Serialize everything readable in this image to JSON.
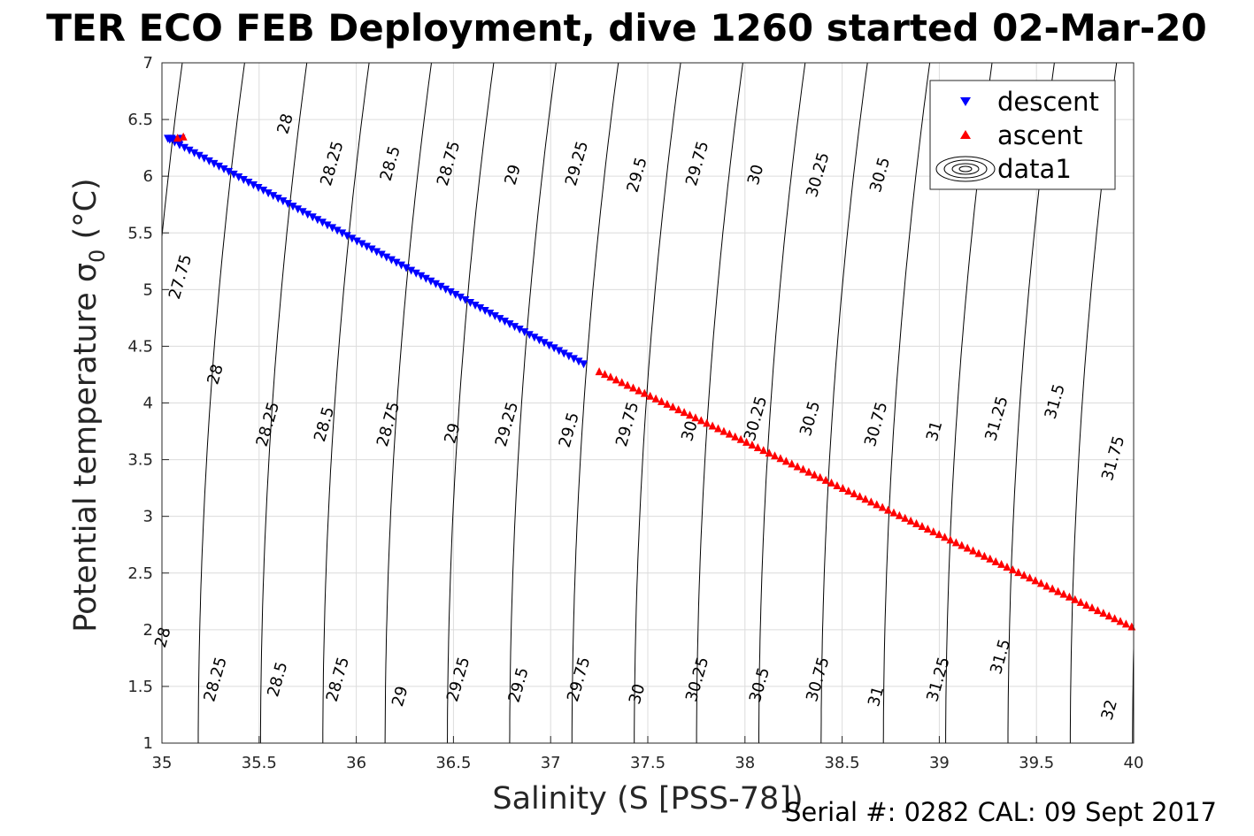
{
  "chart_data": {
    "type": "scatter",
    "title": "TER ECO FEB Deployment, dive 1260 started 02-Mar-20",
    "xlabel": "Salinity (S [PSS-78])",
    "ylabel": "Potential temperature σ",
    "ylabel_sub": "0",
    "ylabel_unit": " (°C)",
    "xlim": [
      35,
      40
    ],
    "ylim": [
      1,
      7
    ],
    "xticks": [
      35,
      35.5,
      36,
      36.5,
      37,
      37.5,
      38,
      38.5,
      39,
      39.5,
      40
    ],
    "yticks": [
      1,
      1.5,
      2,
      2.5,
      3,
      3.5,
      4,
      4.5,
      5,
      5.5,
      6,
      6.5,
      7
    ],
    "grid": true,
    "legend_position": "top-right",
    "legend": [
      "descent",
      "ascent",
      "data1"
    ],
    "series": [
      {
        "name": "descent",
        "marker": "triangle-down",
        "color": "#0000ff",
        "start": [
          35.04,
          6.32
        ],
        "end": [
          37.17,
          4.34
        ],
        "count": 85,
        "cluster": [
          [
            35.03,
            6.33
          ],
          [
            35.05,
            6.33
          ],
          [
            35.07,
            6.32
          ],
          [
            35.08,
            6.31
          ],
          [
            35.1,
            6.33
          ]
        ]
      },
      {
        "name": "ascent",
        "marker": "triangle-up",
        "color": "#ff0000",
        "start": [
          37.25,
          4.28
        ],
        "end": [
          39.99,
          2.03
        ],
        "count": 95,
        "cluster": [
          [
            35.08,
            6.34
          ],
          [
            35.11,
            6.35
          ]
        ]
      }
    ],
    "contours": {
      "name": "data1",
      "levels": [
        27.75,
        28,
        28.25,
        28.5,
        28.75,
        29,
        29.25,
        29.5,
        29.75,
        30,
        30.25,
        30.5,
        30.75,
        31,
        31.25,
        31.5,
        31.75,
        32
      ],
      "labels": [
        {
          "text": "28",
          "x": 35.66,
          "y": 6.45
        },
        {
          "text": "28.25",
          "x": 35.9,
          "y": 6.1
        },
        {
          "text": "28.5",
          "x": 36.2,
          "y": 6.1
        },
        {
          "text": "28.75",
          "x": 36.5,
          "y": 6.1
        },
        {
          "text": "29",
          "x": 36.83,
          "y": 6.0
        },
        {
          "text": "29.25",
          "x": 37.16,
          "y": 6.1
        },
        {
          "text": "29.5",
          "x": 37.47,
          "y": 6.0
        },
        {
          "text": "29.75",
          "x": 37.78,
          "y": 6.1
        },
        {
          "text": "30",
          "x": 38.08,
          "y": 6.0
        },
        {
          "text": "30.25",
          "x": 38.4,
          "y": 6.0
        },
        {
          "text": "30.5",
          "x": 38.72,
          "y": 6.0
        },
        {
          "text": "27.75",
          "x": 35.12,
          "y": 5.1
        },
        {
          "text": "28",
          "x": 35.3,
          "y": 4.24
        },
        {
          "text": "28.25",
          "x": 35.57,
          "y": 3.8
        },
        {
          "text": "28.5",
          "x": 35.86,
          "y": 3.8
        },
        {
          "text": "28.75",
          "x": 36.19,
          "y": 3.8
        },
        {
          "text": "29",
          "x": 36.52,
          "y": 3.72
        },
        {
          "text": "29.25",
          "x": 36.8,
          "y": 3.8
        },
        {
          "text": "29.5",
          "x": 37.12,
          "y": 3.75
        },
        {
          "text": "29.75",
          "x": 37.42,
          "y": 3.8
        },
        {
          "text": "30",
          "x": 37.74,
          "y": 3.74
        },
        {
          "text": "30.25",
          "x": 38.08,
          "y": 3.85
        },
        {
          "text": "30.5",
          "x": 38.36,
          "y": 3.85
        },
        {
          "text": "30.75",
          "x": 38.7,
          "y": 3.8
        },
        {
          "text": "31",
          "x": 39.0,
          "y": 3.74
        },
        {
          "text": "31.25",
          "x": 39.32,
          "y": 3.85
        },
        {
          "text": "31.5",
          "x": 39.62,
          "y": 4.0
        },
        {
          "text": "31.75",
          "x": 39.92,
          "y": 3.5
        },
        {
          "text": "28",
          "x": 35.03,
          "y": 1.92
        },
        {
          "text": "28.25",
          "x": 35.3,
          "y": 1.55
        },
        {
          "text": "28.5",
          "x": 35.62,
          "y": 1.55
        },
        {
          "text": "28.75",
          "x": 35.93,
          "y": 1.55
        },
        {
          "text": "29",
          "x": 36.25,
          "y": 1.4
        },
        {
          "text": "29.25",
          "x": 36.55,
          "y": 1.55
        },
        {
          "text": "29.5",
          "x": 36.86,
          "y": 1.5
        },
        {
          "text": "29.75",
          "x": 37.17,
          "y": 1.55
        },
        {
          "text": "30",
          "x": 37.47,
          "y": 1.42
        },
        {
          "text": "30.25",
          "x": 37.78,
          "y": 1.55
        },
        {
          "text": "30.5",
          "x": 38.1,
          "y": 1.5
        },
        {
          "text": "30.75",
          "x": 38.4,
          "y": 1.55
        },
        {
          "text": "31",
          "x": 38.7,
          "y": 1.4
        },
        {
          "text": "31.25",
          "x": 39.02,
          "y": 1.55
        },
        {
          "text": "31.5",
          "x": 39.34,
          "y": 1.75
        },
        {
          "text": "32",
          "x": 39.9,
          "y": 1.28
        }
      ]
    }
  },
  "footer": {
    "serial": "Serial #: 0282  CAL: 09 Sept 2017"
  }
}
